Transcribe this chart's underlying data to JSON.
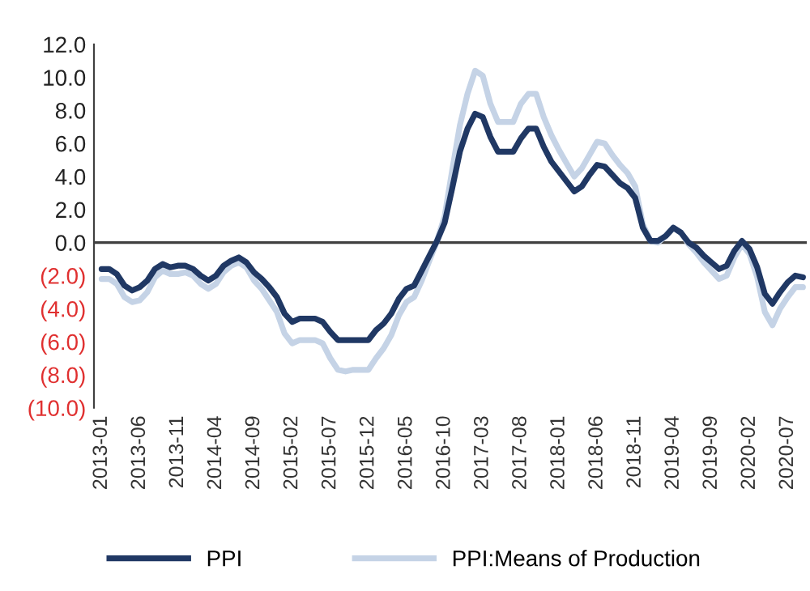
{
  "chart_data": {
    "type": "line",
    "categories": [
      "2013-01",
      null,
      null,
      null,
      null,
      "2013-06",
      null,
      null,
      null,
      null,
      "2013-11",
      null,
      null,
      null,
      null,
      "2014-04",
      null,
      null,
      null,
      null,
      "2014-09",
      null,
      null,
      null,
      null,
      "2015-02",
      null,
      null,
      null,
      null,
      "2015-07",
      null,
      null,
      null,
      null,
      "2015-12",
      null,
      null,
      null,
      null,
      "2016-05",
      null,
      null,
      null,
      null,
      "2016-10",
      null,
      null,
      null,
      null,
      "2017-03",
      null,
      null,
      null,
      null,
      "2017-08",
      null,
      null,
      null,
      null,
      "2018-01",
      null,
      null,
      null,
      null,
      "2018-06",
      null,
      null,
      null,
      null,
      "2018-11",
      null,
      null,
      null,
      null,
      "2019-04",
      null,
      null,
      null,
      null,
      "2019-09",
      null,
      null,
      null,
      null,
      "2020-02",
      null,
      null,
      null,
      null,
      "2020-07",
      null,
      null
    ],
    "series": [
      {
        "name": "PPI",
        "color": "#203864",
        "values": [
          -1.6,
          -1.6,
          -1.9,
          -2.6,
          -2.9,
          -2.7,
          -2.3,
          -1.6,
          -1.3,
          -1.5,
          -1.4,
          -1.4,
          -1.6,
          -2.0,
          -2.3,
          -2.0,
          -1.4,
          -1.1,
          -0.9,
          -1.2,
          -1.8,
          -2.2,
          -2.7,
          -3.3,
          -4.3,
          -4.8,
          -4.6,
          -4.6,
          -4.6,
          -4.8,
          -5.4,
          -5.9,
          -5.9,
          -5.9,
          -5.9,
          -5.9,
          -5.3,
          -4.9,
          -4.3,
          -3.4,
          -2.8,
          -2.6,
          -1.7,
          -0.8,
          0.1,
          1.2,
          3.3,
          5.5,
          6.9,
          7.8,
          7.6,
          6.4,
          5.5,
          5.5,
          5.5,
          6.3,
          6.9,
          6.9,
          5.8,
          4.9,
          4.3,
          3.7,
          3.1,
          3.4,
          4.1,
          4.7,
          4.6,
          4.1,
          3.6,
          3.3,
          2.7,
          0.9,
          0.1,
          0.1,
          0.4,
          0.9,
          0.6,
          0.0,
          -0.3,
          -0.8,
          -1.2,
          -1.6,
          -1.4,
          -0.5,
          0.1,
          -0.4,
          -1.5,
          -3.1,
          -3.7,
          -3.0,
          -2.4,
          -2.0,
          -2.1
        ]
      },
      {
        "name": "PPI:Means of Production",
        "color": "#c5d3e6",
        "values": [
          -2.2,
          -2.2,
          -2.5,
          -3.3,
          -3.6,
          -3.5,
          -3.0,
          -2.1,
          -1.7,
          -1.9,
          -1.9,
          -1.8,
          -2.0,
          -2.5,
          -2.8,
          -2.5,
          -1.8,
          -1.4,
          -1.2,
          -1.5,
          -2.3,
          -2.8,
          -3.5,
          -4.2,
          -5.5,
          -6.1,
          -5.9,
          -5.9,
          -5.9,
          -6.1,
          -7.0,
          -7.7,
          -7.8,
          -7.7,
          -7.7,
          -7.7,
          -7.0,
          -6.4,
          -5.6,
          -4.4,
          -3.6,
          -3.3,
          -2.3,
          -1.1,
          0.1,
          1.6,
          4.4,
          7.1,
          9.0,
          10.4,
          10.1,
          8.4,
          7.3,
          7.3,
          7.3,
          8.4,
          9.0,
          9.0,
          7.6,
          6.5,
          5.6,
          4.8,
          4.0,
          4.5,
          5.3,
          6.1,
          6.0,
          5.3,
          4.7,
          4.2,
          3.4,
          1.1,
          0.1,
          0.0,
          0.4,
          0.9,
          0.6,
          -0.1,
          -0.6,
          -1.2,
          -1.7,
          -2.2,
          -2.0,
          -0.9,
          -0.1,
          -0.7,
          -2.1,
          -4.2,
          -5.0,
          -4.0,
          -3.3,
          -2.7,
          -2.7
        ]
      }
    ],
    "ylim": [
      -10,
      12
    ],
    "yticks": [
      {
        "value": -10,
        "label": "(10.0)"
      },
      {
        "value": -8,
        "label": "(8.0)"
      },
      {
        "value": -6,
        "label": "(6.0)"
      },
      {
        "value": -4,
        "label": "(4.0)"
      },
      {
        "value": -2,
        "label": "(2.0)"
      },
      {
        "value": 0,
        "label": "0.0"
      },
      {
        "value": 2,
        "label": "2.0"
      },
      {
        "value": 4,
        "label": "4.0"
      },
      {
        "value": 6,
        "label": "6.0"
      },
      {
        "value": 8,
        "label": "8.0"
      },
      {
        "value": 10,
        "label": "10.0"
      },
      {
        "value": 12,
        "label": "12.0"
      }
    ],
    "ref_lines": [
      {
        "axis": "y",
        "value": 0,
        "color": "#404040"
      }
    ],
    "grid": false,
    "legend": "bottom",
    "marker": "none",
    "line_style": "solid"
  }
}
